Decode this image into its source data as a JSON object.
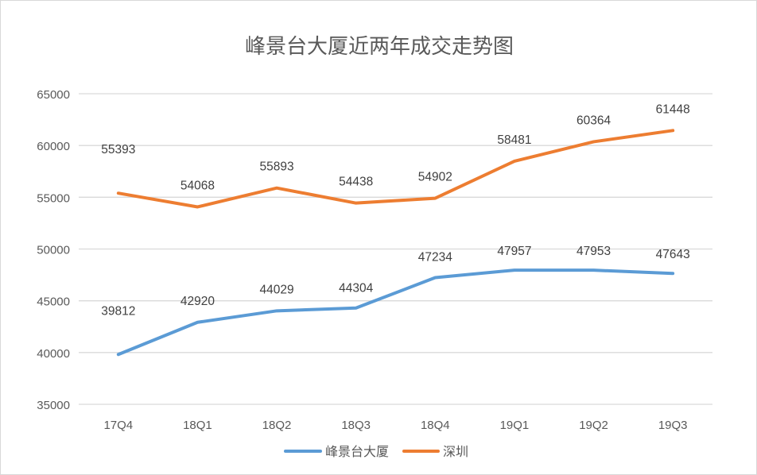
{
  "chart_data": {
    "type": "line",
    "title": "峰景台大厦近两年成交走势图",
    "categories": [
      "17Q4",
      "18Q1",
      "18Q2",
      "18Q3",
      "18Q4",
      "19Q1",
      "19Q2",
      "19Q3"
    ],
    "series": [
      {
        "name": "峰景台大厦",
        "color": "#5b9bd5",
        "values": [
          39812,
          42920,
          44029,
          44304,
          47234,
          47957,
          47953,
          47643
        ]
      },
      {
        "name": "深圳",
        "color": "#ed7d31",
        "values": [
          55393,
          54068,
          55893,
          54438,
          54902,
          58481,
          60364,
          61448
        ]
      }
    ],
    "ylim": [
      35000,
      65000
    ],
    "yticks": [
      "35000",
      "40000",
      "45000",
      "50000",
      "55000",
      "60000",
      "65000"
    ],
    "grid": true,
    "legend": "bottom",
    "data_labels": true
  }
}
